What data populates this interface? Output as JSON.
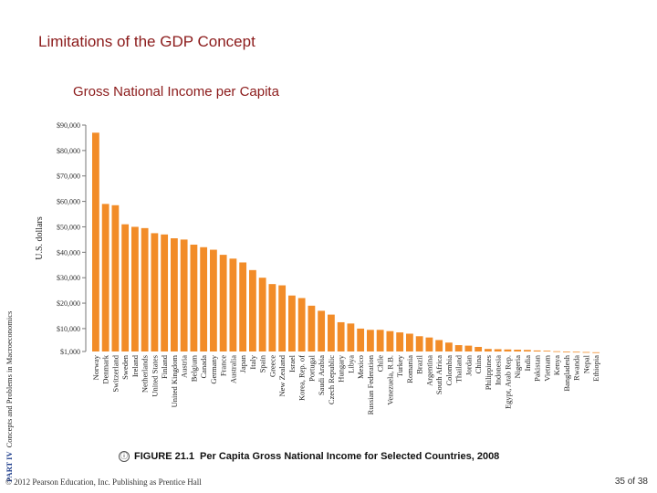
{
  "slide": {
    "title": "Limitations of the GDP Concept",
    "side_label_part": "PART IV",
    "side_label_text": "Concepts and Problems in Macroeconomics",
    "figure_icon": "ⓘ",
    "figure_number": "FIGURE 21.1",
    "figure_caption": "Per Capita Gross National Income for Selected Countries, 2008",
    "copyright": "© 2012 Pearson Education, Inc. Publishing as Prentice Hall",
    "page": "35 of 38"
  },
  "colors": {
    "bar": "#f28c28",
    "title": "#8b1a1a"
  },
  "chart_data": {
    "type": "bar",
    "title": "Gross National Income per Capita",
    "ylabel": "U.S. dollars",
    "ylim": [
      1000,
      90000
    ],
    "yticks": [
      1000,
      10000,
      20000,
      30000,
      40000,
      50000,
      60000,
      70000,
      80000,
      90000
    ],
    "ytick_labels": [
      "$1,000",
      "$10,000",
      "$20,000",
      "$30,000",
      "$40,000",
      "$50,000",
      "$60,000",
      "$70,000",
      "$80,000",
      "$90,000"
    ],
    "grid": false,
    "categories": [
      "Norway",
      "Denmark",
      "Switzerland",
      "Sweden",
      "Ireland",
      "Netherlands",
      "United States",
      "Finland",
      "United Kingdom",
      "Austria",
      "Belgium",
      "Canada",
      "Germany",
      "France",
      "Australia",
      "Japan",
      "Italy",
      "Spain",
      "Greece",
      "New Zealand",
      "Israel",
      "Korea, Rep. of",
      "Portugal",
      "Saudi Arabia",
      "Czech Republic",
      "Hungary",
      "Libya",
      "Mexico",
      "Russian Federation",
      "Chile",
      "Venezuela, R.B.",
      "Turkey",
      "Romania",
      "Brazil",
      "Argentina",
      "South Africa",
      "Colombia",
      "Thailand",
      "Jordan",
      "China",
      "Philippines",
      "Indonesia",
      "Egypt, Arab Rep.",
      "Nigeria",
      "India",
      "Pakistan",
      "Vietnam",
      "Kenya",
      "Bangladesh",
      "Rwanda",
      "Nepal",
      "Ethiopia"
    ],
    "values": [
      87000,
      59000,
      58500,
      51000,
      50000,
      49500,
      47500,
      47000,
      45500,
      45000,
      43000,
      42000,
      41000,
      39000,
      37500,
      36000,
      33000,
      30000,
      27500,
      27000,
      23000,
      22000,
      19000,
      17000,
      15500,
      12500,
      12000,
      10000,
      9500,
      9500,
      9000,
      8500,
      8000,
      7000,
      6500,
      5500,
      4500,
      3500,
      3300,
      2800,
      2000,
      1900,
      1800,
      1700,
      1600,
      1400,
      1300,
      1100,
      1000,
      900,
      800,
      700
    ]
  }
}
